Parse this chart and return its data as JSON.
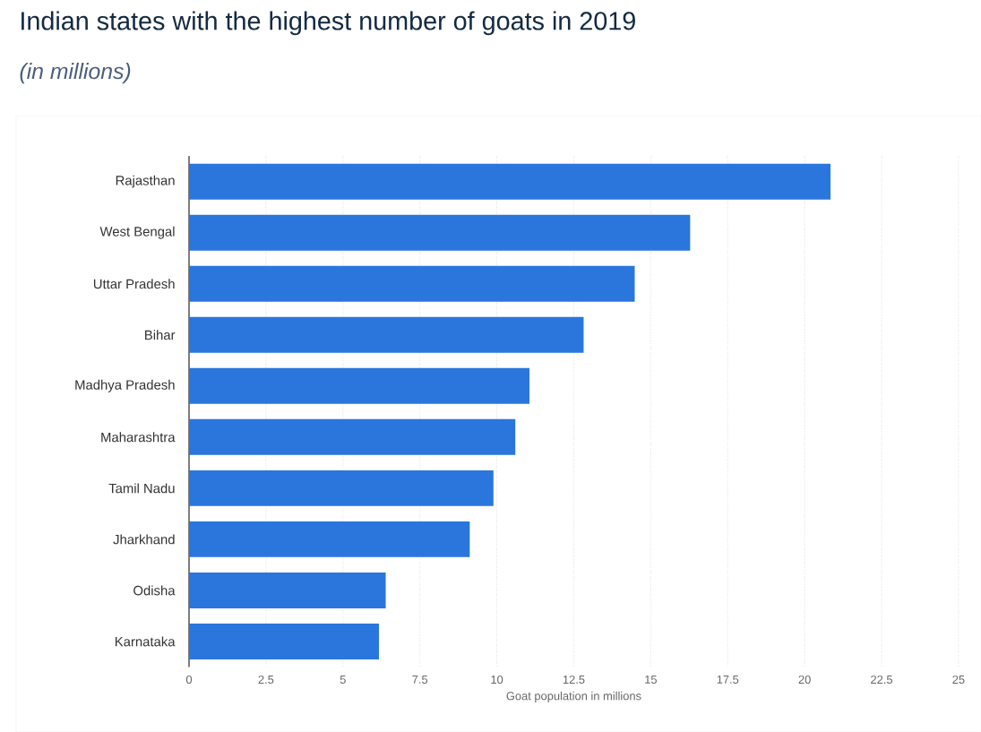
{
  "chart_data": {
    "type": "bar",
    "orientation": "horizontal",
    "title": "Indian states with the highest number of goats in 2019",
    "subtitle": "(in millions)",
    "xlabel": "Goat population in millions",
    "categories": [
      "Rajasthan",
      "West Bengal",
      "Uttar Pradesh",
      "Bihar",
      "Madhya Pradesh",
      "Maharashtra",
      "Tamil Nadu",
      "Jharkhand",
      "Odisha",
      "Karnataka"
    ],
    "values": [
      20.84,
      16.28,
      14.48,
      12.82,
      11.06,
      10.6,
      9.89,
      9.12,
      6.39,
      6.17
    ],
    "color": "#2a76dd",
    "xlim": [
      0,
      25
    ],
    "xticks": [
      0,
      2.5,
      5,
      7.5,
      10,
      12.5,
      15,
      17.5,
      20,
      22.5,
      25
    ],
    "grid": "x"
  }
}
